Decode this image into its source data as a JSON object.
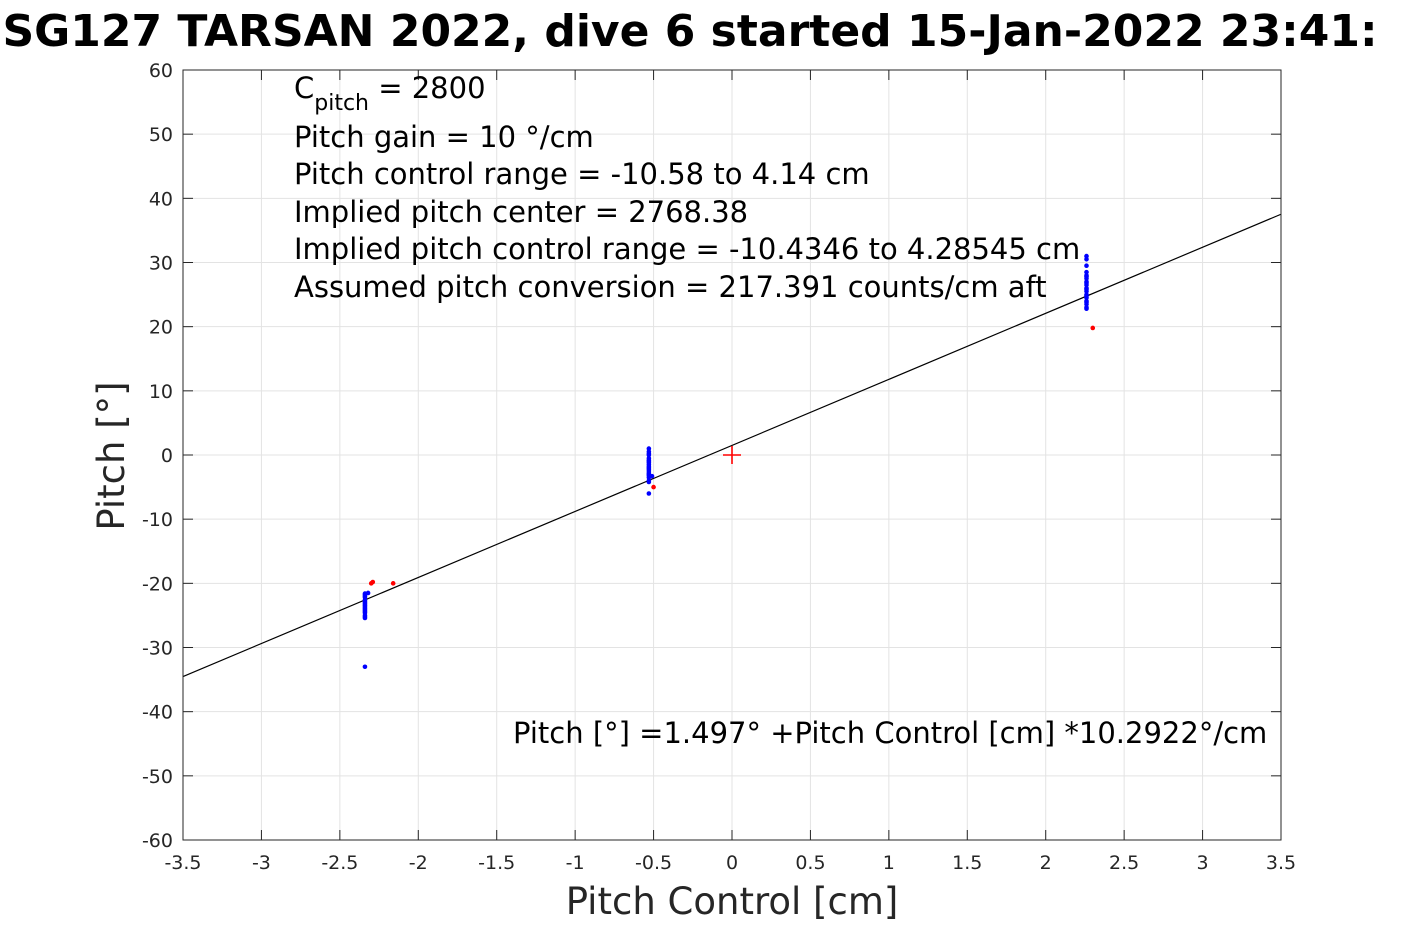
{
  "chart_data": {
    "type": "scatter",
    "title": "SG127 TARSAN 2022, dive 6 started 15-Jan-2022 23:41:",
    "xlabel": "Pitch Control [cm]",
    "ylabel": "Pitch [°]",
    "xlim": [
      -3.5,
      3.5
    ],
    "ylim": [
      -60,
      60
    ],
    "xticks": [
      -3.5,
      -3,
      -2.5,
      -2,
      -1.5,
      -1,
      -0.5,
      0,
      0.5,
      1,
      1.5,
      2,
      2.5,
      3,
      3.5
    ],
    "xtick_labels": [
      "-3.5",
      "-3",
      "-2.5",
      "-2",
      "-1.5",
      "-1",
      "-0.5",
      "0",
      "0.5",
      "1",
      "1.5",
      "2",
      "2.5",
      "3",
      "3.5"
    ],
    "yticks": [
      -60,
      -50,
      -40,
      -30,
      -20,
      -10,
      0,
      10,
      20,
      30,
      40,
      50,
      60
    ],
    "ytick_labels": [
      "-60",
      "-50",
      "-40",
      "-30",
      "-20",
      "-10",
      "0",
      "10",
      "20",
      "30",
      "40",
      "50",
      "60"
    ],
    "grid": true,
    "colors": {
      "used": "#0000ff",
      "excluded": "#ff0000",
      "fit": "#000000",
      "center": "#ff0000",
      "grid": "#e3e3e3",
      "axis": "#262626"
    },
    "annotations": {
      "c_pitch_main": "C",
      "c_pitch_sub": "pitch",
      "c_pitch_value": " = 2800",
      "pitch_gain": "Pitch gain = 10 °/cm",
      "control_range": "Pitch control range = -10.58 to 4.14 cm",
      "implied_center": "Implied pitch center = 2768.38",
      "implied_range": "Implied pitch control range = -10.4346 to 4.28545 cm",
      "conversion": "Assumed pitch conversion = 217.391 counts/cm aft",
      "fit_equation": "Pitch [°] =1.497° +Pitch Control [cm] *10.2922°/cm"
    },
    "fit_line": {
      "intercept": 1.497,
      "slope": 10.2922
    },
    "center_marker": {
      "x": 0,
      "y": 0
    },
    "series": [
      {
        "role": "used",
        "x": [
          -2.34,
          -2.34,
          -2.34,
          -2.34,
          -2.34,
          -2.34,
          -2.34,
          -2.34,
          -2.34,
          -2.34,
          -2.34,
          -2.34,
          -2.34,
          -2.34,
          -2.34,
          -2.34,
          -2.34,
          -2.34,
          -2.32,
          -2.34,
          -0.53,
          -0.53,
          -0.53,
          -0.53,
          -0.53,
          -0.53,
          -0.53,
          -0.53,
          -0.53,
          -0.53,
          -0.53,
          -0.53,
          -0.53,
          -0.53,
          -0.53,
          -0.53,
          -0.53,
          -0.53,
          -0.53,
          -0.51,
          -0.53,
          2.26,
          2.26,
          2.26,
          2.26,
          2.26,
          2.26,
          2.26,
          2.26,
          2.26,
          2.26,
          2.26,
          2.26,
          2.26,
          2.26,
          2.26,
          2.26,
          2.26,
          2.26,
          2.26,
          2.26,
          2.26
        ],
        "y": [
          -21.8,
          -22.2,
          -22.6,
          -23.0,
          -23.4,
          -23.8,
          -24.2,
          -24.6,
          -25.0,
          -25.4,
          -22.0,
          -22.8,
          -23.6,
          -24.4,
          -23.2,
          -24.0,
          -21.6,
          -25.2,
          -21.5,
          -33.0,
          1.0,
          0.5,
          0.0,
          -0.5,
          -1.0,
          -1.5,
          -2.0,
          -2.5,
          -3.0,
          -3.5,
          -4.0,
          -0.8,
          -1.8,
          -2.8,
          0.2,
          -1.2,
          -2.2,
          -3.2,
          -4.2,
          -3.3,
          -6.0,
          31.0,
          29.5,
          28.5,
          28.0,
          27.5,
          27.0,
          26.5,
          26.0,
          25.5,
          25.0,
          24.5,
          24.0,
          23.5,
          23.0,
          27.8,
          26.8,
          25.8,
          24.8,
          23.8,
          30.5,
          22.8
        ]
      },
      {
        "role": "excluded",
        "x": [
          -2.3,
          -2.29,
          -2.16,
          -0.5,
          2.3
        ],
        "y": [
          -20.0,
          -19.8,
          -20.0,
          -5.0,
          19.8
        ]
      }
    ]
  }
}
